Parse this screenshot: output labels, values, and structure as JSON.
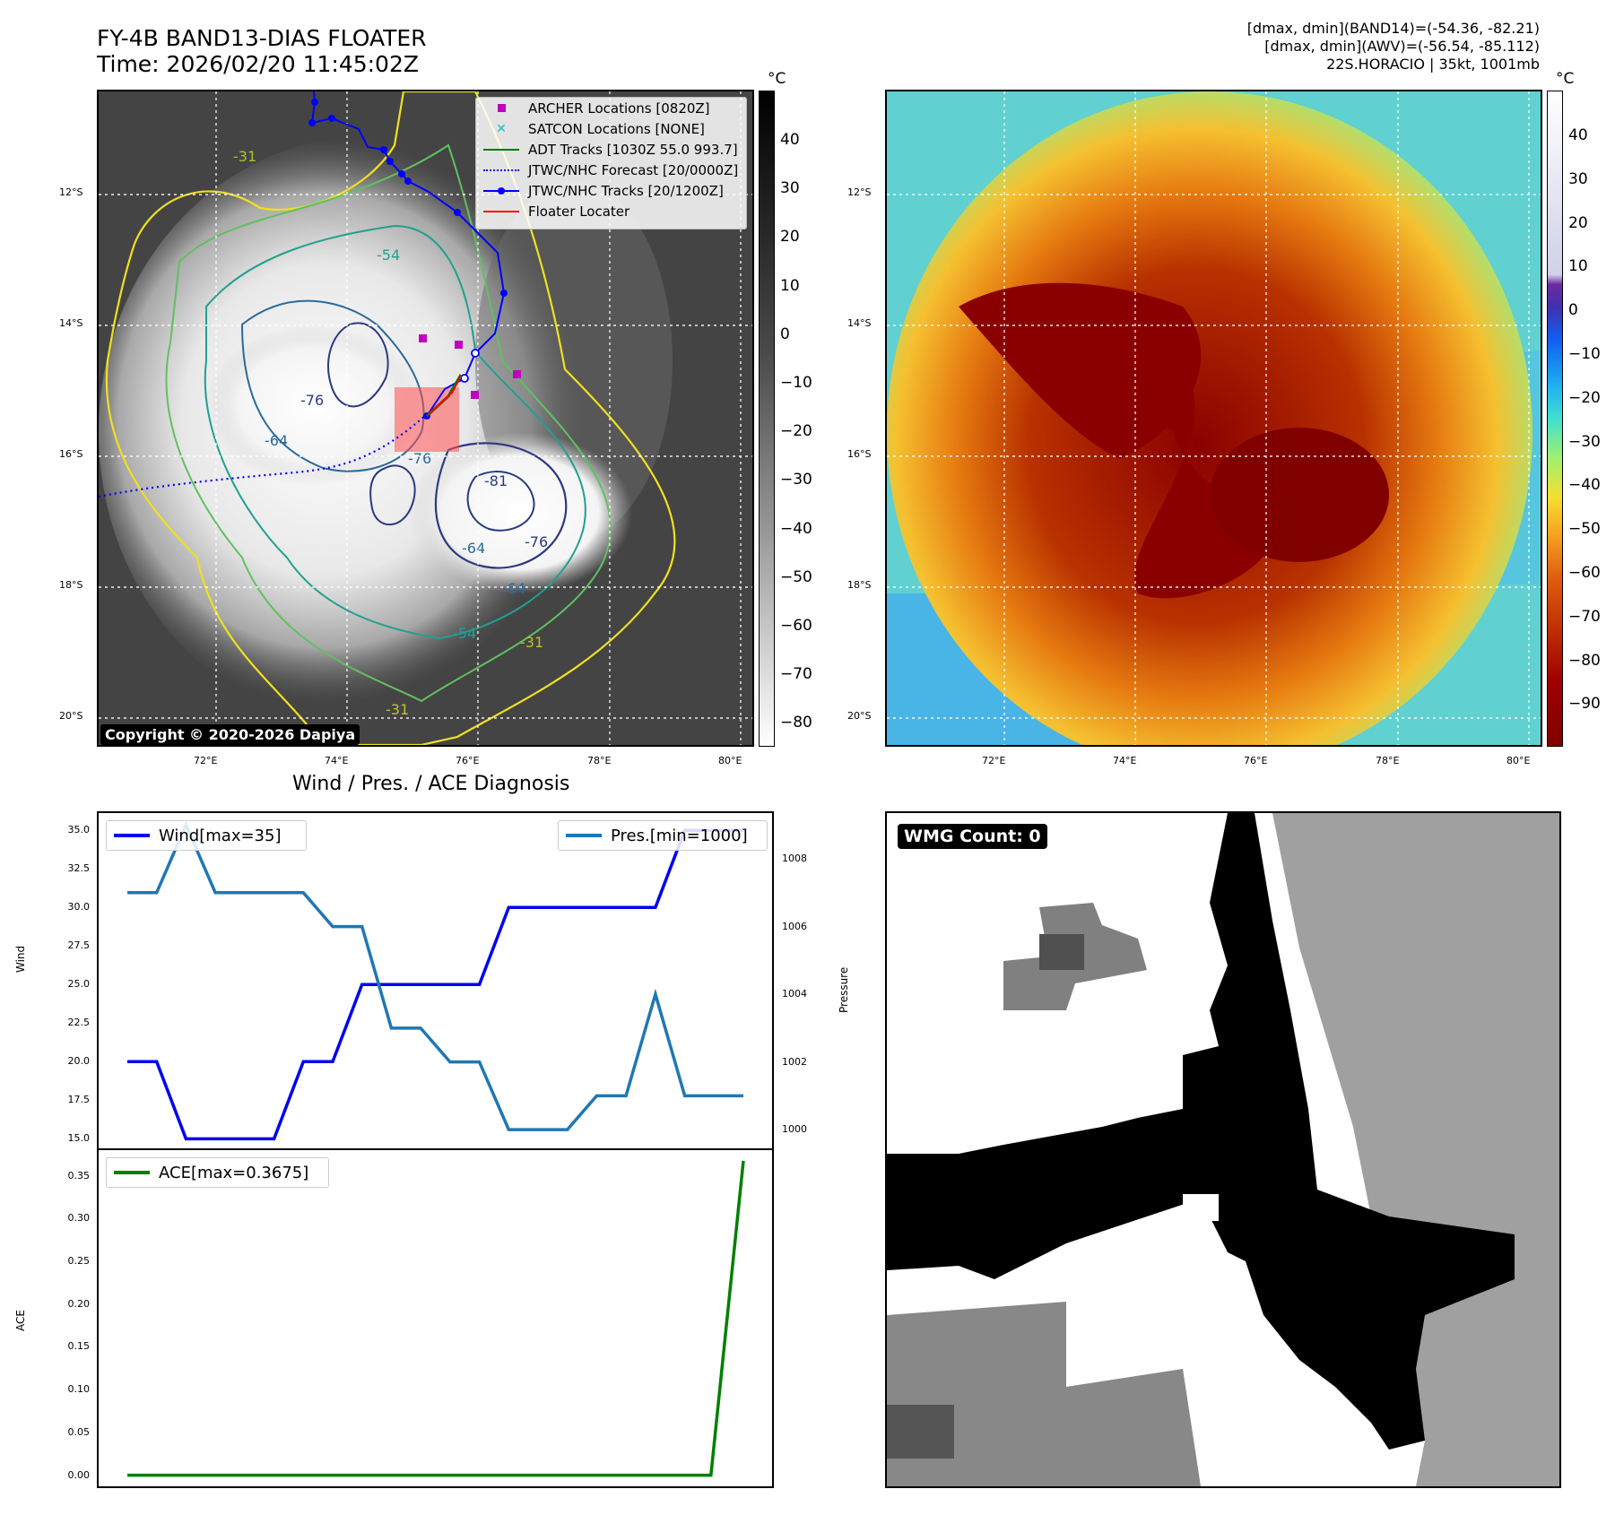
{
  "header": {
    "title_line1": "FY-4B BAND13-DIAS FLOATER",
    "title_line2": "Time: 2026/02/20 11:45:02Z",
    "info_line1": "[dmax, dmin](BAND14)=(-54.36, -82.21)",
    "info_line2": "[dmax, dmin](AWV)=(-56.54, -85.112)",
    "info_line3": "22S.HORACIO | 35kt, 1001mb"
  },
  "map": {
    "lon_ticks": [
      "72°E",
      "74°E",
      "76°E",
      "78°E",
      "80°E"
    ],
    "lat_ticks": [
      "12°S",
      "14°S",
      "16°S",
      "18°S",
      "20°S"
    ],
    "copyright": "Copyright © 2020-2026 Dapiya",
    "contour_labels": [
      "-31",
      "-54",
      "-64",
      "-76",
      "-81",
      "-76",
      "-64",
      "-54",
      "-31",
      "-31",
      "-64",
      "-76"
    ],
    "legend": [
      {
        "label": "ARCHER Locations [0820Z]",
        "color": "#c000c0"
      },
      {
        "label": "SATCON Locations [NONE]",
        "color": "#1cbcbc"
      },
      {
        "label": "ADT Tracks [1030Z 55.0 993.7]",
        "color": "#007a00"
      },
      {
        "label": "JTWC/NHC Forecast [20/0000Z]",
        "color": "#0000ff"
      },
      {
        "label": "JTWC/NHC Tracks [20/1200Z]",
        "color": "#0000ff"
      },
      {
        "label": "Floater Locater",
        "color": "#ff0000"
      }
    ]
  },
  "colorbar_gray": {
    "unit": "°C",
    "ticks": [
      "40",
      "30",
      "20",
      "10",
      "0",
      "−10",
      "−20",
      "−30",
      "−40",
      "−50",
      "−60",
      "−70",
      "−80"
    ]
  },
  "colorbar_color": {
    "unit": "°C",
    "ticks": [
      "40",
      "30",
      "20",
      "10",
      "0",
      "−10",
      "−20",
      "−30",
      "−40",
      "−50",
      "−60",
      "−70",
      "−80",
      "−90"
    ]
  },
  "diagnosis": {
    "title": "Wind / Pres. / ACE Diagnosis",
    "wind_ylabel": "Wind",
    "pres_ylabel": "Pressure",
    "ace_ylabel": "ACE",
    "wind_legend": "Wind[max=35]",
    "pres_legend": "Pres.[min=1000]",
    "ace_legend": "ACE[max=0.3675]",
    "wmg_count": "WMG Count: 0"
  },
  "chart_data": [
    {
      "type": "line",
      "title": "Wind / Pres. / ACE Diagnosis",
      "ylabel": "Wind",
      "ylim": [
        14.5,
        36.0
      ],
      "yticks": [
        "35.0",
        "32.5",
        "30.0",
        "27.5",
        "25.0",
        "22.5",
        "20.0",
        "17.5",
        "15.0"
      ],
      "series": [
        {
          "name": "Wind[max=35]",
          "color": "#0000ee",
          "values": [
            20,
            20,
            15,
            15,
            15,
            15,
            20,
            20,
            25,
            25,
            25,
            25,
            25,
            30,
            30,
            30,
            30,
            30,
            30,
            35,
            35,
            35
          ]
        }
      ]
    },
    {
      "type": "line",
      "ylabel": "Pressure",
      "ylim": [
        999.5,
        1009.3
      ],
      "yticks": [
        "1008",
        "1006",
        "1004",
        "1002",
        "1000"
      ],
      "series": [
        {
          "name": "Pres.[min=1000]",
          "color": "#1f77b4",
          "values": [
            1007,
            1007,
            1009,
            1007,
            1007,
            1007,
            1007,
            1006,
            1006,
            1003,
            1003,
            1002,
            1002,
            1000,
            1000,
            1000,
            1001,
            1001,
            1004,
            1001,
            1001,
            1001
          ]
        }
      ]
    },
    {
      "type": "line",
      "ylabel": "ACE",
      "ylim": [
        -0.013,
        0.38
      ],
      "yticks": [
        "0.35",
        "0.30",
        "0.25",
        "0.20",
        "0.15",
        "0.10",
        "0.05",
        "0.00"
      ],
      "series": [
        {
          "name": "ACE[max=0.3675]",
          "color": "#008000",
          "values": [
            0,
            0,
            0,
            0,
            0,
            0,
            0,
            0,
            0,
            0,
            0,
            0,
            0,
            0,
            0,
            0,
            0,
            0,
            0,
            0.3675
          ]
        }
      ]
    }
  ]
}
